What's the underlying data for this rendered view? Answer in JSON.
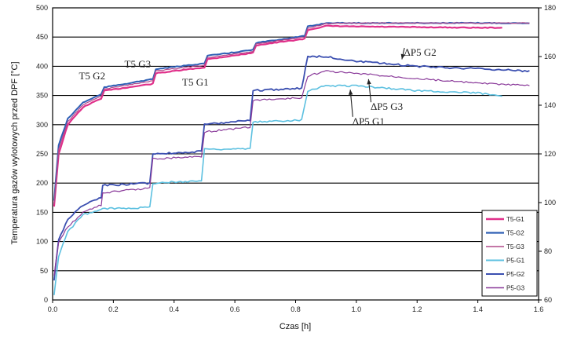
{
  "chart_data": {
    "type": "line",
    "xlabel": "Czas [h]",
    "ylabel": "Temperatura gazów wylotowych przed DPF [°C]",
    "xlim": [
      0,
      1.6
    ],
    "ylim_left": [
      0,
      500
    ],
    "ylim_right": [
      60,
      180
    ],
    "x_ticks": [
      "0.0",
      "0.2",
      "0.4",
      "0.6",
      "0.8",
      "1.0",
      "1.2",
      "1.4",
      "1.6"
    ],
    "y_ticks_left": [
      "0",
      "50",
      "100",
      "150",
      "200",
      "250",
      "300",
      "350",
      "400",
      "450",
      "500"
    ],
    "y_ticks_right": [
      "60",
      "80",
      "100",
      "120",
      "140",
      "160",
      "180"
    ],
    "grid": "horizontal",
    "legend_position": "bottom-right",
    "series": [
      {
        "name": "T5-G1",
        "axis": "left",
        "color": "#e0308a",
        "width": 2.2,
        "x": [
          0.005,
          0.02,
          0.05,
          0.1,
          0.16,
          0.17,
          0.33,
          0.34,
          0.5,
          0.51,
          0.66,
          0.67,
          0.83,
          0.84,
          0.9,
          1.0,
          1.2,
          1.4,
          1.48
        ],
        "y": [
          160,
          250,
          300,
          330,
          345,
          358,
          370,
          388,
          398,
          412,
          423,
          436,
          447,
          462,
          469,
          468,
          467,
          466,
          466
        ]
      },
      {
        "name": "T5-G2",
        "axis": "left",
        "color": "#2f5fb5",
        "width": 2,
        "x": [
          0.005,
          0.02,
          0.05,
          0.1,
          0.16,
          0.17,
          0.33,
          0.34,
          0.5,
          0.51,
          0.66,
          0.67,
          0.83,
          0.84,
          0.9,
          1.0,
          1.2,
          1.4,
          1.57
        ],
        "y": [
          170,
          265,
          310,
          338,
          352,
          364,
          378,
          395,
          405,
          418,
          428,
          440,
          452,
          468,
          474,
          474,
          474,
          474,
          474
        ]
      },
      {
        "name": "T5-G3",
        "axis": "left",
        "color": "#b04a8a",
        "width": 1.2,
        "x": [
          0.005,
          0.02,
          0.05,
          0.1,
          0.16,
          0.17,
          0.33,
          0.34,
          0.5,
          0.51,
          0.66,
          0.67,
          0.83,
          0.84,
          0.9,
          1.0,
          1.2,
          1.4,
          1.57
        ],
        "y": [
          165,
          258,
          305,
          334,
          349,
          361,
          375,
          392,
          402,
          415,
          425,
          438,
          450,
          465,
          473,
          474,
          474,
          474,
          474
        ]
      },
      {
        "name": "P5-G1",
        "axis": "right",
        "color": "#5cc0e0",
        "width": 1.6,
        "x": [
          0.005,
          0.02,
          0.05,
          0.1,
          0.16,
          0.165,
          0.32,
          0.33,
          0.49,
          0.5,
          0.65,
          0.66,
          0.82,
          0.84,
          0.9,
          1.0,
          1.2,
          1.4,
          1.48
        ],
        "y": [
          62,
          78,
          88,
          95,
          97,
          97.5,
          98,
          108,
          109,
          122,
          122,
          133,
          134,
          146,
          148,
          148,
          146,
          145,
          144
        ]
      },
      {
        "name": "P5-G2",
        "axis": "right",
        "color": "#3b4fb0",
        "width": 1.8,
        "x": [
          0.005,
          0.02,
          0.05,
          0.1,
          0.16,
          0.165,
          0.32,
          0.33,
          0.49,
          0.5,
          0.65,
          0.66,
          0.82,
          0.84,
          0.9,
          1.0,
          1.2,
          1.4,
          1.57
        ],
        "y": [
          68,
          85,
          93,
          99,
          102,
          107,
          108,
          120,
          121,
          132,
          134,
          146,
          147,
          160,
          160,
          158,
          156,
          155,
          154
        ]
      },
      {
        "name": "P5-G3",
        "axis": "right",
        "color": "#8a3a9a",
        "width": 1.2,
        "x": [
          0.005,
          0.02,
          0.05,
          0.1,
          0.16,
          0.165,
          0.32,
          0.33,
          0.49,
          0.5,
          0.65,
          0.66,
          0.82,
          0.84,
          0.9,
          1.0,
          1.2,
          1.4,
          1.57
        ],
        "y": [
          70,
          84,
          90,
          96,
          99,
          104,
          106,
          118,
          119,
          129,
          131,
          142,
          143,
          152,
          154,
          153,
          151,
          149,
          148
        ]
      }
    ],
    "annotations": [
      {
        "text": "T5 G2",
        "x": 0.13,
        "y": 378,
        "axis": "left"
      },
      {
        "text": "T5 G3",
        "x": 0.28,
        "y": 398,
        "axis": "left"
      },
      {
        "text": "T5 G1",
        "x": 0.47,
        "y": 367,
        "axis": "left"
      },
      {
        "text": "ΔP5 G2",
        "x": 1.21,
        "y": 418,
        "axis": "left",
        "arrow_to": [
          1.15,
          412
        ]
      },
      {
        "text": "ΔP5 G3",
        "x": 1.1,
        "y": 325,
        "axis": "left",
        "arrow_to": [
          1.04,
          378
        ]
      },
      {
        "text": "ΔP5 G1",
        "x": 1.04,
        "y": 300,
        "axis": "left",
        "arrow_to": [
          0.98,
          360
        ]
      }
    ]
  }
}
